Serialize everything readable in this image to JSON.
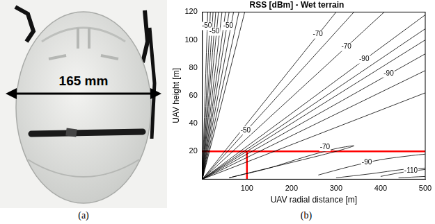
{
  "panel_a": {
    "annotation": "165 mm",
    "caption": "(a)"
  },
  "chart_data": {
    "type": "contour",
    "title": "RSS [dBm] - Wet terrain",
    "caption": "(b)",
    "x_label": "UAV radial distance [m]",
    "y_label": "UAV height [m]",
    "xlim": [
      0,
      500
    ],
    "xticks": [
      100,
      200,
      300,
      400,
      500
    ],
    "ylim": [
      0,
      120
    ],
    "yticks": [
      20,
      40,
      60,
      80,
      100,
      120
    ],
    "grid": false,
    "color": "#000000",
    "contours": [
      {
        "x": [
          0,
          12
        ],
        "y": [
          0,
          120
        ]
      },
      {
        "x": [
          0,
          18
        ],
        "y": [
          0,
          120
        ]
      },
      {
        "x": [
          0,
          24
        ],
        "y": [
          0,
          120
        ]
      },
      {
        "x": [
          0,
          30
        ],
        "y": [
          0,
          120
        ]
      },
      {
        "x": [
          0,
          36
        ],
        "y": [
          0,
          120
        ]
      },
      {
        "x": [
          0,
          44
        ],
        "y": [
          0,
          120
        ]
      },
      {
        "x": [
          0,
          52
        ],
        "y": [
          0,
          120
        ]
      },
      {
        "x": [
          0,
          60
        ],
        "y": [
          0,
          120
        ]
      },
      {
        "x": [
          0,
          70
        ],
        "y": [
          0,
          120
        ]
      },
      {
        "x": [
          0,
          82
        ],
        "y": [
          0,
          120
        ]
      },
      {
        "x": [
          0,
          95
        ],
        "y": [
          0,
          120
        ]
      },
      {
        "x": [
          0,
          300
        ],
        "y": [
          0,
          120
        ]
      },
      {
        "x": [
          0,
          340
        ],
        "y": [
          0,
          120
        ]
      },
      {
        "x": [
          0,
          408
        ],
        "y": [
          0,
          120
        ]
      },
      {
        "x": [
          0,
          500
        ],
        "y": [
          0,
          118
        ]
      },
      {
        "x": [
          0,
          500
        ],
        "y": [
          0,
          108
        ]
      },
      {
        "x": [
          0,
          500
        ],
        "y": [
          0,
          100
        ]
      },
      {
        "x": [
          0,
          500
        ],
        "y": [
          0,
          90
        ]
      },
      {
        "x": [
          0,
          500
        ],
        "y": [
          0,
          78
        ]
      },
      {
        "x": [
          0,
          500
        ],
        "y": [
          0,
          62
        ]
      },
      {
        "x": [
          60,
          150,
          230,
          300,
          340,
          300,
          200,
          110,
          60
        ],
        "y": [
          1,
          8,
          16,
          22,
          24,
          20,
          12,
          5,
          1
        ]
      },
      {
        "x": [
          260,
          330,
          400,
          470,
          500
        ],
        "y": [
          3,
          9,
          14,
          17,
          18
        ]
      },
      {
        "x": [
          300,
          380,
          450,
          500
        ],
        "y": [
          1,
          4,
          7,
          8
        ]
      },
      {
        "x": [
          400,
          450,
          500
        ],
        "y": [
          2,
          5,
          7
        ]
      },
      {
        "x": [
          440,
          500
        ],
        "y": [
          1,
          2
        ]
      }
    ],
    "contour_labels": [
      {
        "value": -50,
        "x": 10,
        "y": 110
      },
      {
        "value": -50,
        "x": 27,
        "y": 106
      },
      {
        "value": -50,
        "x": 58,
        "y": 110
      },
      {
        "value": -50,
        "x": 97,
        "y": 35
      },
      {
        "value": -70,
        "x": 259,
        "y": 104
      },
      {
        "value": -70,
        "x": 323,
        "y": 95
      },
      {
        "value": -90,
        "x": 363,
        "y": 86
      },
      {
        "value": -90,
        "x": 418,
        "y": 76
      },
      {
        "value": -70,
        "x": 275,
        "y": 23
      },
      {
        "value": -90,
        "x": 369,
        "y": 12
      },
      {
        "value": -110,
        "x": 468,
        "y": 6
      }
    ],
    "reference_lines": [
      {
        "x": [
          0,
          500
        ],
        "y": [
          20,
          20
        ],
        "color": "#ff0000"
      },
      {
        "x": [
          100,
          100
        ],
        "y": [
          0,
          20
        ],
        "color": "#ff0000"
      }
    ]
  }
}
